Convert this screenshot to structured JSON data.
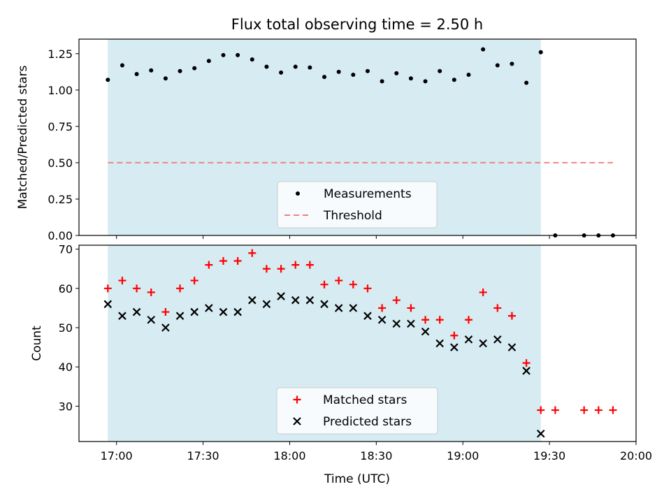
{
  "title": "Flux total observing time = 2.50 h",
  "xlabel": "Time (UTC)",
  "chart_data": [
    {
      "type": "scatter",
      "ylabel": "Matched/Predicted stars",
      "xlim": [
        "16:47",
        "20:00"
      ],
      "ylim": [
        0,
        1.35
      ],
      "yticks": [
        "0.00",
        "0.25",
        "0.50",
        "0.75",
        "1.00",
        "1.25"
      ],
      "ytick_values": [
        0,
        0.25,
        0.5,
        0.75,
        1.0,
        1.25
      ],
      "shaded_interval": [
        "16:57",
        "19:27"
      ],
      "grid": false,
      "legend_position": "lower center",
      "series": [
        {
          "name": "Measurements",
          "marker": "dot",
          "color": "#000000",
          "x": [
            "16:57",
            "17:02",
            "17:07",
            "17:12",
            "17:17",
            "17:22",
            "17:27",
            "17:32",
            "17:37",
            "17:42",
            "17:47",
            "17:52",
            "17:57",
            "18:02",
            "18:07",
            "18:12",
            "18:17",
            "18:22",
            "18:27",
            "18:32",
            "18:37",
            "18:42",
            "18:47",
            "18:52",
            "18:57",
            "19:02",
            "19:07",
            "19:12",
            "19:17",
            "19:22",
            "19:27",
            "19:32",
            "19:42",
            "19:47",
            "19:52"
          ],
          "y": [
            1.07,
            1.17,
            1.11,
            1.135,
            1.08,
            1.13,
            1.15,
            1.2,
            1.24,
            1.24,
            1.21,
            1.16,
            1.12,
            1.16,
            1.155,
            1.09,
            1.125,
            1.105,
            1.13,
            1.06,
            1.115,
            1.08,
            1.06,
            1.13,
            1.07,
            1.105,
            1.28,
            1.17,
            1.18,
            1.05,
            1.26,
            0,
            0,
            0,
            0
          ]
        },
        {
          "name": "Threshold",
          "style": "dashed",
          "color": "#f08080",
          "x": [
            "16:57",
            "19:52"
          ],
          "y": [
            0.5,
            0.5
          ]
        }
      ]
    },
    {
      "type": "scatter",
      "ylabel": "Count",
      "ylim": [
        21,
        71
      ],
      "yticks": [
        "30",
        "40",
        "50",
        "60",
        "70"
      ],
      "ytick_values": [
        30,
        40,
        50,
        60,
        70
      ],
      "xticks": [
        "17:00",
        "17:30",
        "18:00",
        "18:30",
        "19:00",
        "19:30",
        "20:00"
      ],
      "shaded_interval": [
        "16:57",
        "19:27"
      ],
      "grid": false,
      "legend_position": "lower center",
      "series": [
        {
          "name": "Matched stars",
          "marker": "plus",
          "color": "#ff0000",
          "x": [
            "16:57",
            "17:02",
            "17:07",
            "17:12",
            "17:17",
            "17:22",
            "17:27",
            "17:32",
            "17:37",
            "17:42",
            "17:47",
            "17:52",
            "17:57",
            "18:02",
            "18:07",
            "18:12",
            "18:17",
            "18:22",
            "18:27",
            "18:32",
            "18:37",
            "18:42",
            "18:47",
            "18:52",
            "18:57",
            "19:02",
            "19:07",
            "19:12",
            "19:17",
            "19:22",
            "19:27",
            "19:32",
            "19:42",
            "19:47",
            "19:52"
          ],
          "y": [
            60,
            62,
            60,
            59,
            54,
            60,
            62,
            66,
            67,
            67,
            69,
            65,
            65,
            66,
            66,
            61,
            62,
            61,
            60,
            55,
            57,
            55,
            52,
            52,
            48,
            52,
            59,
            55,
            53,
            41,
            29,
            29,
            29,
            29,
            29
          ]
        },
        {
          "name": "Predicted stars",
          "marker": "x",
          "color": "#000000",
          "x": [
            "16:57",
            "17:02",
            "17:07",
            "17:12",
            "17:17",
            "17:22",
            "17:27",
            "17:32",
            "17:37",
            "17:42",
            "17:47",
            "17:52",
            "17:57",
            "18:02",
            "18:07",
            "18:12",
            "18:17",
            "18:22",
            "18:27",
            "18:32",
            "18:37",
            "18:42",
            "18:47",
            "18:52",
            "18:57",
            "19:02",
            "19:07",
            "19:12",
            "19:17",
            "19:22",
            "19:27"
          ],
          "y": [
            56,
            53,
            54,
            52,
            50,
            53,
            54,
            55,
            54,
            54,
            57,
            56,
            58,
            57,
            57,
            56,
            55,
            55,
            53,
            52,
            51,
            51,
            49,
            46,
            45,
            47,
            46,
            47,
            45,
            39,
            23
          ]
        }
      ]
    }
  ]
}
